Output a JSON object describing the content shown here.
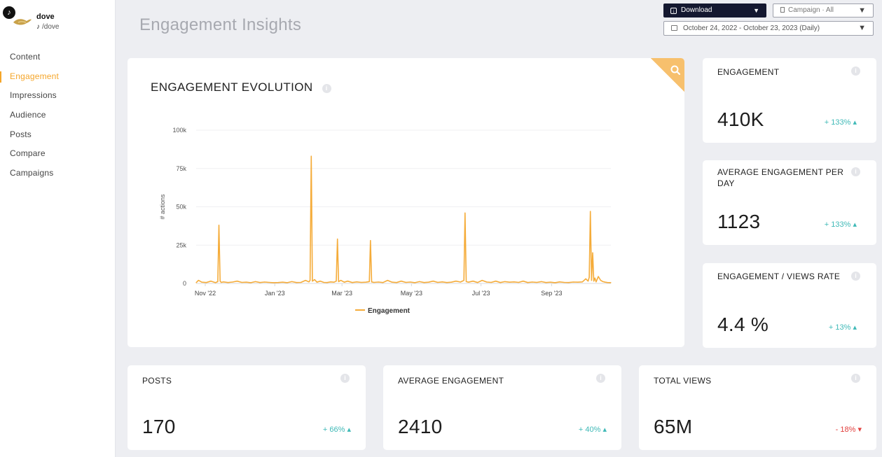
{
  "brand": {
    "name": "dove",
    "handle": "/dove",
    "platform_icon": "tiktok-icon",
    "accent": "#f5a62a"
  },
  "nav": {
    "items": [
      {
        "label": "Content",
        "active": false
      },
      {
        "label": "Engagement",
        "active": true
      },
      {
        "label": "Impressions",
        "active": false
      },
      {
        "label": "Audience",
        "active": false
      },
      {
        "label": "Posts",
        "active": false
      },
      {
        "label": "Compare",
        "active": false
      },
      {
        "label": "Campaigns",
        "active": false
      }
    ]
  },
  "header": {
    "title": "Engagement Insights",
    "download_label": "Download",
    "campaign_select": "Campaign · All",
    "date_range": "October 24, 2022 - October 23, 2023 (Daily)"
  },
  "chart": {
    "title": "ENGAGEMENT EVOLUTION",
    "ylabel": "# actions",
    "legend": "Engagement",
    "line_color": "#f5ac3a"
  },
  "chart_data": {
    "type": "line",
    "title": "ENGAGEMENT EVOLUTION",
    "xlabel": "",
    "ylabel": "# actions",
    "ylim": [
      0,
      100000
    ],
    "yticks": [
      0,
      25000,
      50000,
      75000,
      100000
    ],
    "ytick_labels": [
      "0",
      "25k",
      "50k",
      "75k",
      "100k"
    ],
    "xticks": [
      "2022-11-01",
      "2023-01-01",
      "2023-03-01",
      "2023-05-01",
      "2023-07-01",
      "2023-09-01"
    ],
    "xtick_labels": [
      "Nov '22",
      "Jan '23",
      "Mar '23",
      "May '23",
      "Jul '23",
      "Sep '23"
    ],
    "xlim": [
      "2022-10-24",
      "2023-10-23"
    ],
    "grid": true,
    "legend_position": "bottom",
    "series": [
      {
        "name": "Engagement",
        "x": [
          "2022-10-24",
          "2022-10-26",
          "2022-10-29",
          "2022-11-02",
          "2022-11-06",
          "2022-11-10",
          "2022-11-12",
          "2022-11-13",
          "2022-11-14",
          "2022-11-15",
          "2022-11-17",
          "2022-11-21",
          "2022-11-25",
          "2022-11-29",
          "2022-12-03",
          "2022-12-07",
          "2022-12-11",
          "2022-12-15",
          "2022-12-19",
          "2022-12-23",
          "2022-12-27",
          "2022-12-31",
          "2023-01-04",
          "2023-01-08",
          "2023-01-12",
          "2023-01-16",
          "2023-01-20",
          "2023-01-24",
          "2023-01-28",
          "2023-01-31",
          "2023-02-01",
          "2023-02-02",
          "2023-02-03",
          "2023-02-05",
          "2023-02-07",
          "2023-02-10",
          "2023-02-13",
          "2023-02-16",
          "2023-02-19",
          "2023-02-22",
          "2023-02-24",
          "2023-02-25",
          "2023-02-26",
          "2023-02-28",
          "2023-03-03",
          "2023-03-06",
          "2023-03-10",
          "2023-03-14",
          "2023-03-18",
          "2023-03-22",
          "2023-03-25",
          "2023-03-26",
          "2023-03-27",
          "2023-03-29",
          "2023-04-02",
          "2023-04-06",
          "2023-04-10",
          "2023-04-14",
          "2023-04-18",
          "2023-04-22",
          "2023-04-26",
          "2023-04-30",
          "2023-05-04",
          "2023-05-08",
          "2023-05-12",
          "2023-05-16",
          "2023-05-20",
          "2023-05-24",
          "2023-05-28",
          "2023-06-01",
          "2023-06-05",
          "2023-06-09",
          "2023-06-13",
          "2023-06-16",
          "2023-06-17",
          "2023-06-18",
          "2023-06-20",
          "2023-06-24",
          "2023-06-28",
          "2023-07-02",
          "2023-07-06",
          "2023-07-10",
          "2023-07-14",
          "2023-07-18",
          "2023-07-22",
          "2023-07-26",
          "2023-07-30",
          "2023-08-03",
          "2023-08-07",
          "2023-08-11",
          "2023-08-15",
          "2023-08-19",
          "2023-08-23",
          "2023-08-27",
          "2023-08-31",
          "2023-09-04",
          "2023-09-08",
          "2023-09-12",
          "2023-09-16",
          "2023-09-20",
          "2023-09-24",
          "2023-09-28",
          "2023-10-01",
          "2023-10-03",
          "2023-10-04",
          "2023-10-05",
          "2023-10-06",
          "2023-10-07",
          "2023-10-08",
          "2023-10-09",
          "2023-10-10",
          "2023-10-12",
          "2023-10-14",
          "2023-10-16",
          "2023-10-18",
          "2023-10-20",
          "2023-10-23"
        ],
        "values": [
          500,
          2000,
          800,
          600,
          1500,
          500,
          1200,
          38000,
          1500,
          700,
          1000,
          600,
          900,
          1500,
          700,
          800,
          500,
          1200,
          600,
          900,
          700,
          500,
          600,
          800,
          500,
          1200,
          600,
          700,
          2000,
          1000,
          2000,
          83000,
          1500,
          2500,
          800,
          1500,
          700,
          600,
          1000,
          800,
          1500,
          29000,
          1200,
          2000,
          800,
          1500,
          600,
          1000,
          700,
          800,
          1200,
          28000,
          1000,
          700,
          900,
          600,
          2000,
          800,
          600,
          1500,
          700,
          900,
          500,
          1200,
          600,
          800,
          1500,
          700,
          1000,
          600,
          800,
          1500,
          900,
          2000,
          46000,
          1200,
          800,
          1500,
          600,
          2000,
          900,
          700,
          1500,
          600,
          1200,
          800,
          1000,
          700,
          1500,
          600,
          900,
          700,
          1200,
          600,
          800,
          500,
          1000,
          700,
          600,
          900,
          800,
          1000,
          3000,
          1500,
          4000,
          47000,
          2000,
          20000,
          1500,
          3500,
          1000,
          4500,
          2000,
          1200,
          800,
          600,
          500
        ]
      }
    ]
  },
  "kpis_right": [
    {
      "label": "ENGAGEMENT",
      "value": "410K",
      "delta": "+ 133%",
      "dir": "up"
    },
    {
      "label": "AVERAGE ENGAGEMENT PER DAY",
      "value": "1123",
      "delta": "+ 133%",
      "dir": "up"
    },
    {
      "label": "ENGAGEMENT / VIEWS RATE",
      "value": "4.4 %",
      "delta": "+ 13%",
      "dir": "up"
    }
  ],
  "kpis_bottom": [
    {
      "label": "POSTS",
      "value": "170",
      "delta": "+ 66%",
      "dir": "up"
    },
    {
      "label": "AVERAGE ENGAGEMENT",
      "value": "2410",
      "delta": "+ 40%",
      "dir": "up"
    },
    {
      "label": "TOTAL VIEWS",
      "value": "65M",
      "delta": "- 18%",
      "dir": "down"
    }
  ],
  "colors": {
    "up": "#3fb9b7",
    "down": "#e2403e",
    "download_bg": "#141830"
  }
}
